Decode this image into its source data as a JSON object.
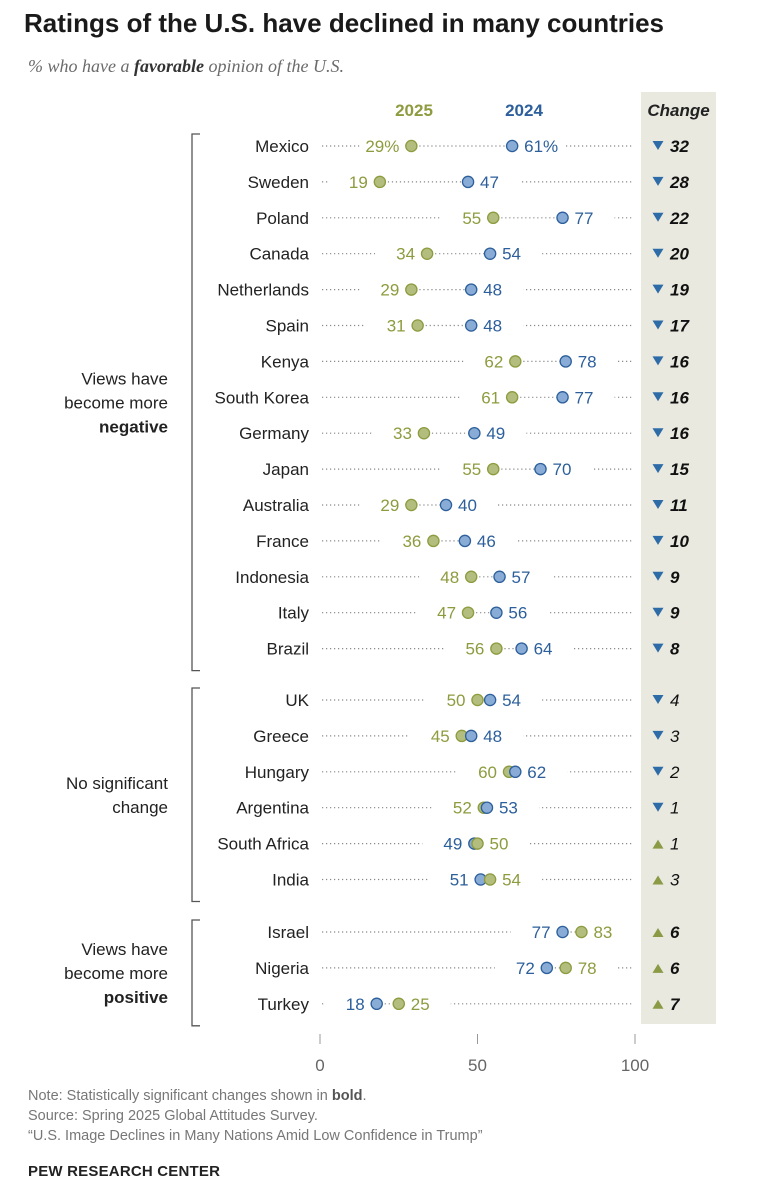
{
  "title": "Ratings of the U.S. have declined in many countries",
  "subtitle": {
    "pre": "% who have a ",
    "emph": "favorable",
    "post": " opinion of the U.S."
  },
  "notes": {
    "note_pre": "Note: Statistically significant changes shown in ",
    "note_bold": "bold",
    "note_post": ".",
    "source": "Source: Spring 2025 Global Attitudes Survey.",
    "report": "“U.S. Image Declines in Many Nations Amid Low Confidence in Trump”"
  },
  "brand": "PEW RESEARCH CENTER",
  "colors": {
    "y2025": "#8e9b3e",
    "y2025_fill": "#b3bd7d",
    "y2024": "#2c5f9b",
    "y2024_fill": "#89acd6",
    "change_bg": "#e9e9e0",
    "down_marker": "#2e6ca8",
    "up_marker": "#8a9a45"
  },
  "chart_data": {
    "type": "scatter",
    "series": [
      {
        "name": "2025"
      },
      {
        "name": "2024"
      }
    ],
    "change_header": "Change",
    "xlim": [
      0,
      100
    ],
    "x_ticks": [
      0,
      50,
      100
    ],
    "groups": [
      {
        "label_lines": [
          "Views have",
          "become more",
          "negative"
        ],
        "label_bold_last": true,
        "rows": [
          {
            "country": "Mexico",
            "y2025": 29,
            "y2024": 61,
            "label2025": "29%",
            "label2024": "61%",
            "change": 32,
            "direction": "down",
            "significant": true
          },
          {
            "country": "Sweden",
            "y2025": 19,
            "y2024": 47,
            "change": 28,
            "direction": "down",
            "significant": true
          },
          {
            "country": "Poland",
            "y2025": 55,
            "y2024": 77,
            "change": 22,
            "direction": "down",
            "significant": true
          },
          {
            "country": "Canada",
            "y2025": 34,
            "y2024": 54,
            "change": 20,
            "direction": "down",
            "significant": true
          },
          {
            "country": "Netherlands",
            "y2025": 29,
            "y2024": 48,
            "change": 19,
            "direction": "down",
            "significant": true
          },
          {
            "country": "Spain",
            "y2025": 31,
            "y2024": 48,
            "change": 17,
            "direction": "down",
            "significant": true
          },
          {
            "country": "Kenya",
            "y2025": 62,
            "y2024": 78,
            "change": 16,
            "direction": "down",
            "significant": true
          },
          {
            "country": "South Korea",
            "y2025": 61,
            "y2024": 77,
            "change": 16,
            "direction": "down",
            "significant": true
          },
          {
            "country": "Germany",
            "y2025": 33,
            "y2024": 49,
            "change": 16,
            "direction": "down",
            "significant": true
          },
          {
            "country": "Japan",
            "y2025": 55,
            "y2024": 70,
            "change": 15,
            "direction": "down",
            "significant": true
          },
          {
            "country": "Australia",
            "y2025": 29,
            "y2024": 40,
            "change": 11,
            "direction": "down",
            "significant": true
          },
          {
            "country": "France",
            "y2025": 36,
            "y2024": 46,
            "change": 10,
            "direction": "down",
            "significant": true
          },
          {
            "country": "Indonesia",
            "y2025": 48,
            "y2024": 57,
            "change": 9,
            "direction": "down",
            "significant": true
          },
          {
            "country": "Italy",
            "y2025": 47,
            "y2024": 56,
            "change": 9,
            "direction": "down",
            "significant": true
          },
          {
            "country": "Brazil",
            "y2025": 56,
            "y2024": 64,
            "change": 8,
            "direction": "down",
            "significant": true
          }
        ]
      },
      {
        "label_lines": [
          "No significant",
          "change"
        ],
        "label_bold_last": false,
        "rows": [
          {
            "country": "UK",
            "y2025": 50,
            "y2024": 54,
            "change": 4,
            "direction": "down",
            "significant": false
          },
          {
            "country": "Greece",
            "y2025": 45,
            "y2024": 48,
            "change": 3,
            "direction": "down",
            "significant": false
          },
          {
            "country": "Hungary",
            "y2025": 60,
            "y2024": 62,
            "change": 2,
            "direction": "down",
            "significant": false
          },
          {
            "country": "Argentina",
            "y2025": 52,
            "y2024": 53,
            "change": 1,
            "direction": "down",
            "significant": false
          },
          {
            "country": "South Africa",
            "y2025": 50,
            "y2024": 49,
            "change": 1,
            "direction": "up",
            "significant": false
          },
          {
            "country": "India",
            "y2025": 54,
            "y2024": 51,
            "change": 3,
            "direction": "up",
            "significant": false
          }
        ]
      },
      {
        "label_lines": [
          "Views have",
          "become more",
          "positive"
        ],
        "label_bold_last": true,
        "rows": [
          {
            "country": "Israel",
            "y2025": 83,
            "y2024": 77,
            "change": 6,
            "direction": "up",
            "significant": true
          },
          {
            "country": "Nigeria",
            "y2025": 78,
            "y2024": 72,
            "change": 6,
            "direction": "up",
            "significant": true
          },
          {
            "country": "Turkey",
            "y2025": 25,
            "y2024": 18,
            "change": 7,
            "direction": "up",
            "significant": true
          }
        ]
      }
    ]
  }
}
